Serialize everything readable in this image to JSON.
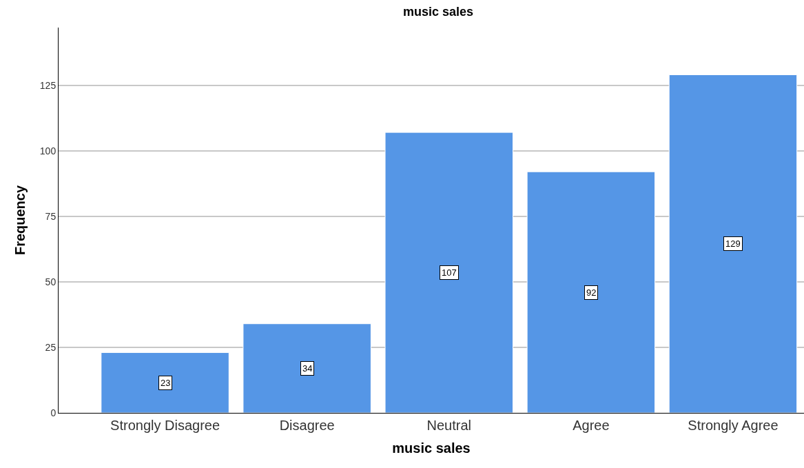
{
  "chart_data": {
    "type": "bar",
    "title": "music sales",
    "xlabel": "music sales",
    "ylabel": "Frequency",
    "categories": [
      "Strongly Disagree",
      "Disagree",
      "Neutral",
      "Agree",
      "Strongly Agree"
    ],
    "values": [
      23,
      34,
      107,
      92,
      129
    ],
    "color": "#5596e6",
    "ylim": [
      0,
      147
    ],
    "yticks": [
      0,
      25,
      50,
      75,
      100,
      125
    ],
    "grid": "y",
    "data_labels": true
  }
}
